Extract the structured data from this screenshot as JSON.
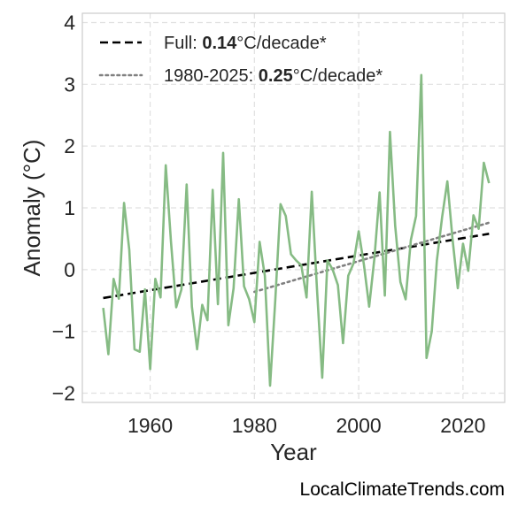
{
  "chart_data": {
    "type": "line",
    "xlabel": "Year",
    "ylabel": "Anomaly (°C)",
    "xlim": [
      1947,
      2028
    ],
    "ylim": [
      -2.15,
      4.15
    ],
    "xticks": [
      1960,
      1980,
      2000,
      2020
    ],
    "yticks": [
      -2,
      -1,
      0,
      1,
      2,
      3,
      4
    ],
    "ytick_labels": [
      "−2",
      "−1",
      "0",
      "1",
      "2",
      "3",
      "4"
    ],
    "grid": true,
    "legend_position": "top-left",
    "legend": [
      {
        "prefix": "Full: ",
        "value": "0.14",
        "suffix": "°C/decade*",
        "style": "dashed",
        "color": "#000000"
      },
      {
        "prefix": "1980-2025: ",
        "value": "0.25",
        "suffix": "°C/decade*",
        "style": "dotted",
        "color": "#808080"
      }
    ],
    "series": [
      {
        "color": "#86bb84",
        "x": [
          1951,
          1952,
          1953,
          1954,
          1955,
          1956,
          1957,
          1958,
          1959,
          1960,
          1961,
          1962,
          1963,
          1964,
          1965,
          1966,
          1967,
          1968,
          1969,
          1970,
          1971,
          1972,
          1973,
          1974,
          1975,
          1976,
          1977,
          1978,
          1979,
          1980,
          1981,
          1982,
          1983,
          1984,
          1985,
          1986,
          1987,
          1988,
          1989,
          1990,
          1991,
          1992,
          1993,
          1994,
          1995,
          1996,
          1997,
          1998,
          1999,
          2000,
          2001,
          2002,
          2003,
          2004,
          2005,
          2006,
          2007,
          2008,
          2009,
          2010,
          2011,
          2012,
          2013,
          2014,
          2015,
          2016,
          2017,
          2018,
          2019,
          2020,
          2021,
          2022,
          2023,
          2024,
          2025
        ],
        "values": [
          -0.62,
          -1.37,
          -0.15,
          -0.47,
          1.08,
          0.32,
          -1.29,
          -1.33,
          -0.32,
          -1.61,
          -0.15,
          -0.45,
          1.69,
          0.45,
          -0.61,
          -0.32,
          1.38,
          -0.6,
          -1.29,
          -0.57,
          -0.82,
          1.29,
          -0.56,
          1.89,
          -0.9,
          -0.3,
          1.14,
          -0.27,
          -0.48,
          -0.85,
          0.45,
          -0.1,
          -1.88,
          -0.49,
          1.06,
          0.87,
          0.25,
          0.15,
          0.07,
          -0.45,
          1.26,
          -0.32,
          -1.75,
          0.15,
          0.0,
          -0.25,
          -1.19,
          -0.1,
          0.1,
          0.62,
          0.08,
          -0.6,
          0.18,
          1.25,
          -0.42,
          2.23,
          0.71,
          -0.2,
          -0.48,
          0.48,
          0.87,
          3.15,
          -1.43,
          -1.0,
          0.15,
          0.85,
          1.43,
          0.49,
          -0.3,
          0.42,
          -0.02,
          0.88,
          0.66,
          1.73,
          1.4
        ]
      }
    ],
    "trendlines": [
      {
        "style": "dashed",
        "color": "#000000",
        "x": [
          1951,
          2025
        ],
        "y": [
          -0.46,
          0.58
        ]
      },
      {
        "style": "dotted",
        "color": "#808080",
        "x": [
          1980,
          2025
        ],
        "y": [
          -0.36,
          0.76
        ]
      }
    ]
  },
  "credit": "LocalClimateTrends.com"
}
